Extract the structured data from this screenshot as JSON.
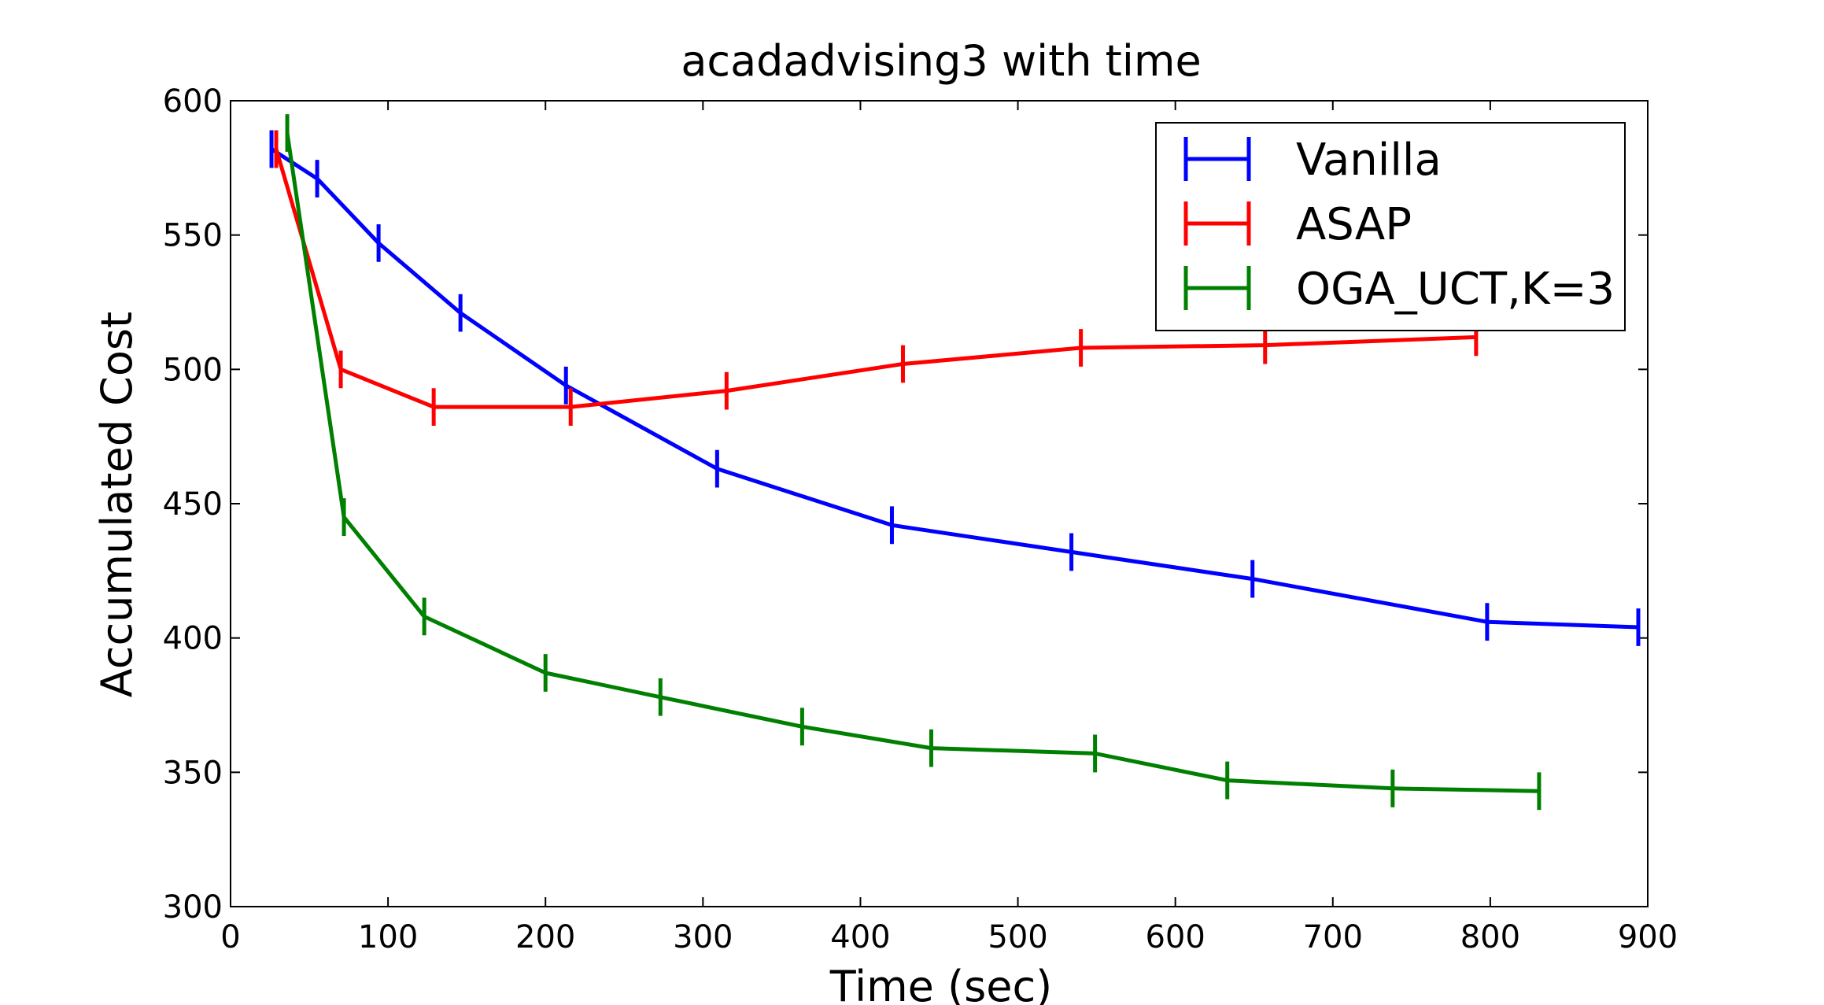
{
  "chart_data": {
    "type": "line",
    "title": "acadadvising3 with time",
    "xlabel": "Time (sec)",
    "ylabel": "Accumulated Cost",
    "xlim": [
      0,
      900
    ],
    "ylim": [
      300,
      600
    ],
    "xticks": [
      0,
      100,
      200,
      300,
      400,
      500,
      600,
      700,
      800,
      900
    ],
    "yticks": [
      300,
      350,
      400,
      450,
      500,
      550,
      600
    ],
    "grid": false,
    "legend_position": "top-right",
    "error_bars": true,
    "series": [
      {
        "name": "Vanilla",
        "color": "#0000ff",
        "x": [
          26,
          55,
          94,
          146,
          213,
          309,
          420,
          534,
          649,
          798,
          894
        ],
        "y": [
          582,
          571,
          547,
          521,
          494,
          463,
          442,
          432,
          422,
          406,
          404
        ],
        "yerr": [
          7,
          7,
          7,
          7,
          7,
          7,
          7,
          7,
          7,
          7,
          7
        ]
      },
      {
        "name": "ASAP",
        "color": "#ff0000",
        "x": [
          29,
          70,
          129,
          216,
          315,
          427,
          540,
          657,
          791
        ],
        "y": [
          582,
          500,
          486,
          486,
          492,
          502,
          508,
          509,
          512
        ],
        "yerr": [
          7,
          7,
          7,
          7,
          7,
          7,
          7,
          7,
          7
        ]
      },
      {
        "name": "OGA_UCT,K=3",
        "color": "#008000",
        "x": [
          36,
          72,
          123,
          200,
          273,
          363,
          445,
          549,
          633,
          738,
          831
        ],
        "y": [
          588,
          445,
          408,
          387,
          378,
          367,
          359,
          357,
          347,
          344,
          343
        ],
        "yerr": [
          7,
          7,
          7,
          7,
          7,
          7,
          7,
          7,
          7,
          7,
          7
        ]
      }
    ]
  }
}
